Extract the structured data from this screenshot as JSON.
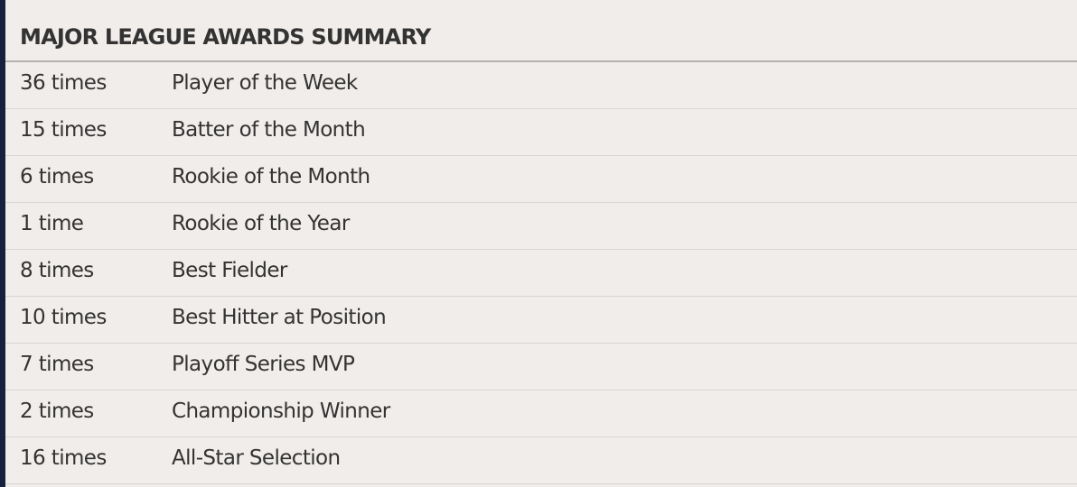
{
  "title": "MAJOR LEAGUE AWARDS SUMMARY",
  "rows": [
    {
      "count": "36 times",
      "award": "Player of the Week"
    },
    {
      "count": "15 times",
      "award": "Batter of the Month"
    },
    {
      "count": "6 times",
      "award": "Rookie of the Month"
    },
    {
      "count": "1 time",
      "award": "Rookie of the Year"
    },
    {
      "count": "8 times",
      "award": "Best Fielder"
    },
    {
      "count": "10 times",
      "award": "Best Hitter at Position"
    },
    {
      "count": "7 times",
      "award": "Playoff Series MVP"
    },
    {
      "count": "2 times",
      "award": "Championship Winner"
    },
    {
      "count": "16 times",
      "award": "All-Star Selection"
    }
  ],
  "colors": {
    "background": "#f1edea",
    "sidebar": "#15213f",
    "text": "#333333"
  }
}
